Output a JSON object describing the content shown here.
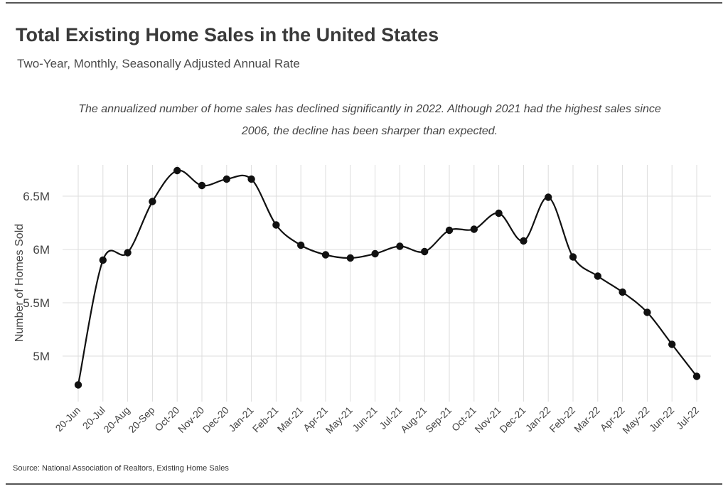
{
  "title": "Total Existing Home Sales in the United States",
  "subtitle": "Two-Year, Monthly, Seasonally Adjusted Annual Rate",
  "annotation": "The annualized number of home sales has declined significantly in 2022. Although 2021 had the highest sales since 2006, the decline has been sharper than expected.",
  "source": "Source:  National Association of Realtors, Existing Home Sales",
  "chart_data": {
    "type": "line",
    "categories": [
      "20-Jun",
      "20-Jul",
      "20-Aug",
      "20-Sep",
      "Oct-20",
      "Nov-20",
      "Dec-20",
      "Jan-21",
      "Feb-21",
      "Mar-21",
      "Apr-21",
      "May-21",
      "Jun-21",
      "Jul-21",
      "Aug-21",
      "Sep-21",
      "Oct-21",
      "Nov-21",
      "Dec-21",
      "Jan-22",
      "Feb-22",
      "Mar-22",
      "Apr-22",
      "May-22",
      "Jun-22",
      "Jul-22"
    ],
    "series": [
      {
        "values": [
          4.73,
          5.9,
          5.97,
          6.45,
          6.74,
          6.6,
          6.66,
          6.66,
          6.23,
          6.04,
          5.95,
          5.92,
          5.96,
          6.03,
          5.98,
          6.18,
          6.19,
          6.34,
          6.08,
          6.49,
          5.93,
          5.75,
          5.6,
          5.41,
          5.11,
          4.81
        ]
      }
    ],
    "ylabel": "Number of Homes Sold",
    "xlabel": "",
    "ylim": [
      4.7,
      6.8
    ],
    "yticks": [
      5.0,
      5.5,
      6.0,
      6.5
    ],
    "ytick_labels": [
      "5M",
      "5.5M",
      "6M",
      "6.5M"
    ],
    "grid": true,
    "line_color": "#111111",
    "marker_color": "#111111",
    "grid_color": "#dddddd"
  }
}
